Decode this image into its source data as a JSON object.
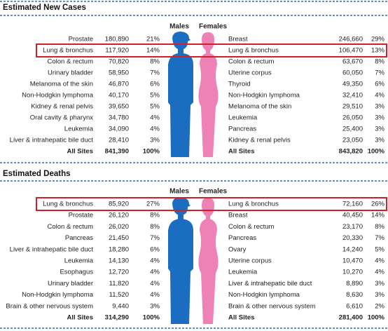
{
  "sections": [
    {
      "title": "Estimated New Cases",
      "males_label": "Males",
      "females_label": "Females",
      "rows": [
        [
          "Prostate",
          "180,890",
          "21%",
          "Breast",
          "246,660",
          "29%"
        ],
        [
          "Lung & bronchus",
          "117,920",
          "14%",
          "Lung & bronchus",
          "106,470",
          "13%"
        ],
        [
          "Colon & rectum",
          "70,820",
          "8%",
          "Colon & rectum",
          "63,670",
          "8%"
        ],
        [
          "Urinary bladder",
          "58,950",
          "7%",
          "Uterine corpus",
          "60,050",
          "7%"
        ],
        [
          "Melanoma of the skin",
          "46,870",
          "6%",
          "Thyroid",
          "49,350",
          "6%"
        ],
        [
          "Non-Hodgkin lymphoma",
          "40,170",
          "5%",
          "Non-Hodgkin lymphoma",
          "32,410",
          "4%"
        ],
        [
          "Kidney & renal pelvis",
          "39,650",
          "5%",
          "Melanoma of the skin",
          "29,510",
          "3%"
        ],
        [
          "Oral cavity & pharynx",
          "34,780",
          "4%",
          "Leukemia",
          "26,050",
          "3%"
        ],
        [
          "Leukemia",
          "34,090",
          "4%",
          "Pancreas",
          "25,400",
          "3%"
        ],
        [
          "Liver & intrahepatic bile duct",
          "28,410",
          "3%",
          "Kidney & renal pelvis",
          "23,050",
          "3%"
        ]
      ],
      "total": [
        "All Sites",
        "841,390",
        "100%",
        "All Sites",
        "843,820",
        "100%"
      ]
    },
    {
      "title": "Estimated Deaths",
      "males_label": "Males",
      "females_label": "Females",
      "rows": [
        [
          "Lung & bronchus",
          "85,920",
          "27%",
          "Lung & bronchus",
          "72,160",
          "26%"
        ],
        [
          "Prostate",
          "26,120",
          "8%",
          "Breast",
          "40,450",
          "14%"
        ],
        [
          "Colon & rectum",
          "26,020",
          "8%",
          "Colon & rectum",
          "23,170",
          "8%"
        ],
        [
          "Pancreas",
          "21,450",
          "7%",
          "Pancreas",
          "20,330",
          "7%"
        ],
        [
          "Liver & intrahepatic bile duct",
          "18,280",
          "6%",
          "Ovary",
          "14,240",
          "5%"
        ],
        [
          "Leukemia",
          "14,130",
          "4%",
          "Uterine corpus",
          "10,470",
          "4%"
        ],
        [
          "Esophagus",
          "12,720",
          "4%",
          "Leukemia",
          "10,270",
          "4%"
        ],
        [
          "Urinary bladder",
          "11,820",
          "4%",
          "Liver & intrahepatic bile duct",
          "8,890",
          "3%"
        ],
        [
          "Non-Hodgkin lymphoma",
          "11,520",
          "4%",
          "Non-Hodgkin lymphoma",
          "8,630",
          "3%"
        ],
        [
          "Brain & other nervous system",
          "9,440",
          "3%",
          "Brain & other nervous system",
          "6,610",
          "2%"
        ]
      ],
      "total": [
        "All Sites",
        "314,290",
        "100%",
        "All Sites",
        "281,400",
        "100%"
      ]
    }
  ]
}
